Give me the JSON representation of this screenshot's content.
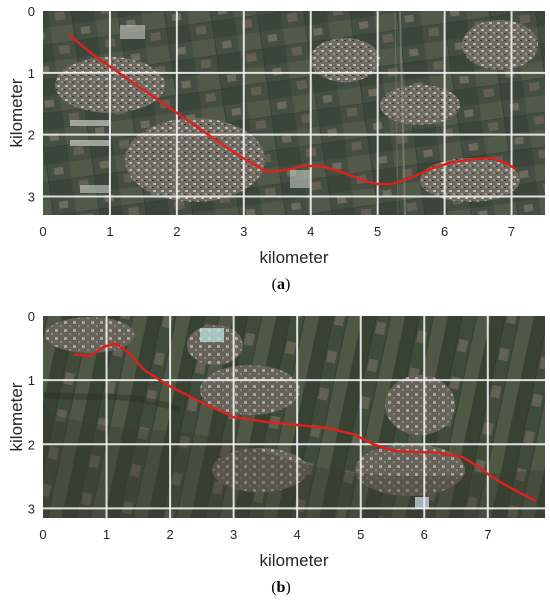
{
  "chart_data": [
    {
      "type": "line",
      "panel_label": "(a)",
      "xlabel": "kilometer",
      "ylabel": "kilometer",
      "xlim": [
        0,
        7.5
      ],
      "ylim": [
        0,
        3.3
      ],
      "y_reversed": true,
      "xticks": [
        0,
        1,
        2,
        3,
        4,
        5,
        6,
        7
      ],
      "yticks": [
        0,
        1,
        2,
        3
      ],
      "grid": true,
      "grid_color": "#f2f2f2",
      "line_color": "#e0201b",
      "background": "satellite imagery (rural farmland and villages)",
      "series": [
        {
          "x": [
            0.4,
            0.8,
            1.2,
            1.6,
            2.0,
            2.4,
            2.8,
            3.1,
            3.35,
            3.6,
            3.9,
            4.2,
            4.5,
            4.8,
            5.0,
            5.2,
            5.5,
            5.8,
            6.1,
            6.4,
            6.7,
            6.9,
            7.05
          ],
          "y": [
            0.4,
            0.75,
            1.05,
            1.35,
            1.65,
            1.95,
            2.25,
            2.45,
            2.6,
            2.58,
            2.5,
            2.52,
            2.62,
            2.75,
            2.8,
            2.8,
            2.7,
            2.55,
            2.45,
            2.4,
            2.38,
            2.45,
            2.55
          ]
        }
      ]
    },
    {
      "type": "line",
      "panel_label": "(b)",
      "xlabel": "kilometer",
      "ylabel": "kilometer",
      "xlim": [
        0,
        7.9
      ],
      "ylim": [
        0,
        3.15
      ],
      "y_reversed": true,
      "xticks": [
        0,
        1,
        2,
        3,
        4,
        5,
        6,
        7
      ],
      "yticks": [
        0,
        1,
        2,
        3
      ],
      "grid": true,
      "grid_color": "#f2f2f2",
      "line_color": "#e0201b",
      "background": "satellite imagery (rural farmland and villages)",
      "series": [
        {
          "x": [
            0.5,
            0.75,
            0.95,
            1.15,
            1.35,
            1.6,
            2.0,
            2.5,
            3.0,
            3.5,
            4.0,
            4.5,
            4.9,
            5.2,
            5.5,
            5.8,
            6.2,
            6.6,
            6.85,
            7.05,
            7.3,
            7.55,
            7.75
          ],
          "y": [
            0.6,
            0.62,
            0.48,
            0.43,
            0.58,
            0.85,
            1.1,
            1.35,
            1.58,
            1.65,
            1.7,
            1.75,
            1.85,
            2.0,
            2.1,
            2.12,
            2.13,
            2.2,
            2.35,
            2.5,
            2.65,
            2.78,
            2.88
          ]
        }
      ]
    }
  ]
}
